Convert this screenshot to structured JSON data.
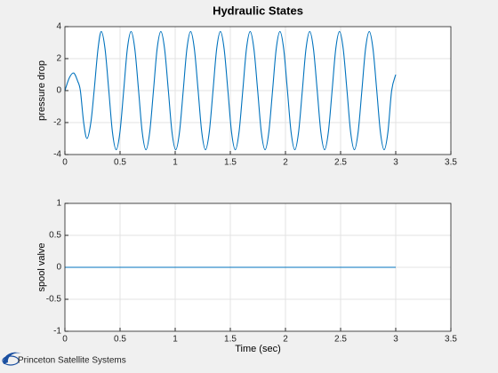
{
  "chart_data": [
    {
      "type": "line",
      "title": "Hydraulic States",
      "ylabel": "pressure drop",
      "x": [
        0,
        0.04,
        0.08,
        0.115,
        0.14,
        0.17,
        0.2,
        0.235,
        0.265,
        0.3,
        0.33,
        0.364,
        0.398,
        0.431,
        0.465,
        0.499,
        0.533,
        0.566,
        0.6,
        0.634,
        0.668,
        0.701,
        0.735,
        0.769,
        0.803,
        0.836,
        0.87,
        0.904,
        0.938,
        0.971,
        1.005,
        1.039,
        1.073,
        1.106,
        1.14,
        1.174,
        1.208,
        1.241,
        1.275,
        1.309,
        1.343,
        1.376,
        1.41,
        1.444,
        1.478,
        1.511,
        1.545,
        1.579,
        1.613,
        1.646,
        1.68,
        1.714,
        1.748,
        1.781,
        1.815,
        1.849,
        1.883,
        1.916,
        1.95,
        1.984,
        2.018,
        2.051,
        2.085,
        2.119,
        2.153,
        2.186,
        2.22,
        2.254,
        2.288,
        2.321,
        2.355,
        2.389,
        2.423,
        2.456,
        2.49,
        2.524,
        2.558,
        2.591,
        2.625,
        2.659,
        2.693,
        2.726,
        2.76,
        2.794,
        2.828,
        2.861,
        2.895,
        2.929,
        2.963,
        3.0
      ],
      "series": [
        {
          "color": "#0072bd",
          "values": [
            0,
            0.8,
            1.1,
            0.6,
            0,
            -2.0,
            -3.0,
            -2.0,
            0,
            2.6,
            3.7,
            2.6,
            0,
            -2.6,
            -3.7,
            -2.6,
            0,
            2.6,
            3.7,
            2.6,
            0,
            -2.6,
            -3.7,
            -2.6,
            0,
            2.6,
            3.7,
            2.6,
            0,
            -2.6,
            -3.7,
            -2.6,
            0,
            2.6,
            3.7,
            2.6,
            0,
            -2.6,
            -3.7,
            -2.6,
            0,
            2.6,
            3.7,
            2.6,
            0,
            -2.6,
            -3.7,
            -2.6,
            0,
            2.6,
            3.7,
            2.6,
            0,
            -2.6,
            -3.7,
            -2.6,
            0,
            2.6,
            3.7,
            2.6,
            0,
            -2.6,
            -3.7,
            -2.6,
            0,
            2.6,
            3.7,
            2.6,
            0,
            -2.6,
            -3.7,
            -2.6,
            0,
            2.6,
            3.7,
            2.6,
            0,
            -2.6,
            -3.7,
            -2.6,
            0,
            2.6,
            3.7,
            2.6,
            0,
            -2.6,
            -3.7,
            -2.6,
            0,
            1.0
          ]
        }
      ],
      "xlim": [
        0,
        3.5
      ],
      "xticks": [
        0,
        0.5,
        1,
        1.5,
        2,
        2.5,
        3,
        3.5
      ],
      "ylim": [
        -4,
        4
      ],
      "yticks": [
        -4,
        -2,
        0,
        2,
        4
      ],
      "grid": true
    },
    {
      "type": "line",
      "ylabel": "spool valve",
      "xlabel": "Time (sec)",
      "x": [
        0,
        3.0
      ],
      "series": [
        {
          "color": "#0072bd",
          "values": [
            0,
            0
          ]
        }
      ],
      "xlim": [
        0,
        3.5
      ],
      "xticks": [
        0,
        0.5,
        1,
        1.5,
        2,
        2.5,
        3,
        3.5
      ],
      "ylim": [
        -1,
        1
      ],
      "yticks": [
        -1,
        -0.5,
        0,
        0.5,
        1
      ],
      "grid": true
    }
  ],
  "footer": "Princeton Satellite Systems"
}
